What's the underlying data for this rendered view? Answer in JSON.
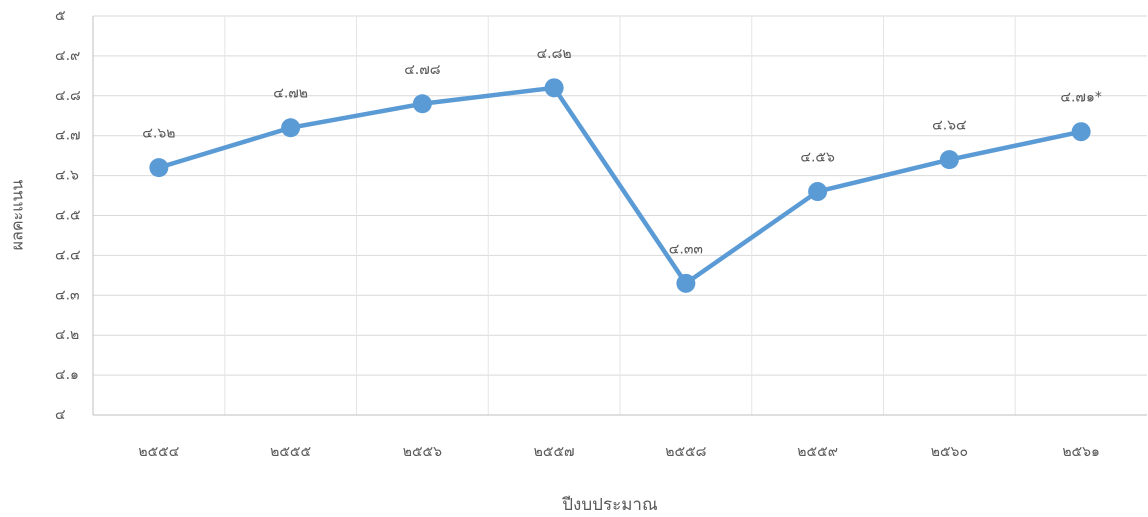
{
  "chart_data": {
    "type": "line",
    "xlabel": "ปีงบประมาณ",
    "ylabel": "ผลคะแนน",
    "categories": [
      "๒๕๕๔",
      "๒๕๕๕",
      "๒๕๕๖",
      "๒๕๕๗",
      "๒๕๕๘",
      "๒๕๕๙",
      "๒๕๖๐",
      "๒๕๖๑"
    ],
    "series": [
      {
        "color": "#5b9bd5",
        "values": [
          4.62,
          4.72,
          4.78,
          4.82,
          4.33,
          4.56,
          4.64,
          4.71
        ],
        "value_labels": [
          "๔.๖๒",
          "๔.๗๒",
          "๔.๗๘",
          "๔.๘๒",
          "๔.๓๓",
          "๔.๕๖",
          "๔.๖๔",
          "๔.๗๑*"
        ]
      }
    ],
    "ylim": [
      4,
      5
    ],
    "yticks": [
      {
        "value": 4,
        "label": "๔"
      },
      {
        "value": 4.1,
        "label": "๔.๑"
      },
      {
        "value": 4.2,
        "label": "๔.๒"
      },
      {
        "value": 4.3,
        "label": "๔.๓"
      },
      {
        "value": 4.4,
        "label": "๔.๔"
      },
      {
        "value": 4.5,
        "label": "๔.๕"
      },
      {
        "value": 4.6,
        "label": "๔.๖"
      },
      {
        "value": 4.7,
        "label": "๔.๗"
      },
      {
        "value": 4.8,
        "label": "๔.๘"
      },
      {
        "value": 4.9,
        "label": "๔.๙"
      },
      {
        "value": 5,
        "label": "๕"
      }
    ],
    "grid": true
  }
}
